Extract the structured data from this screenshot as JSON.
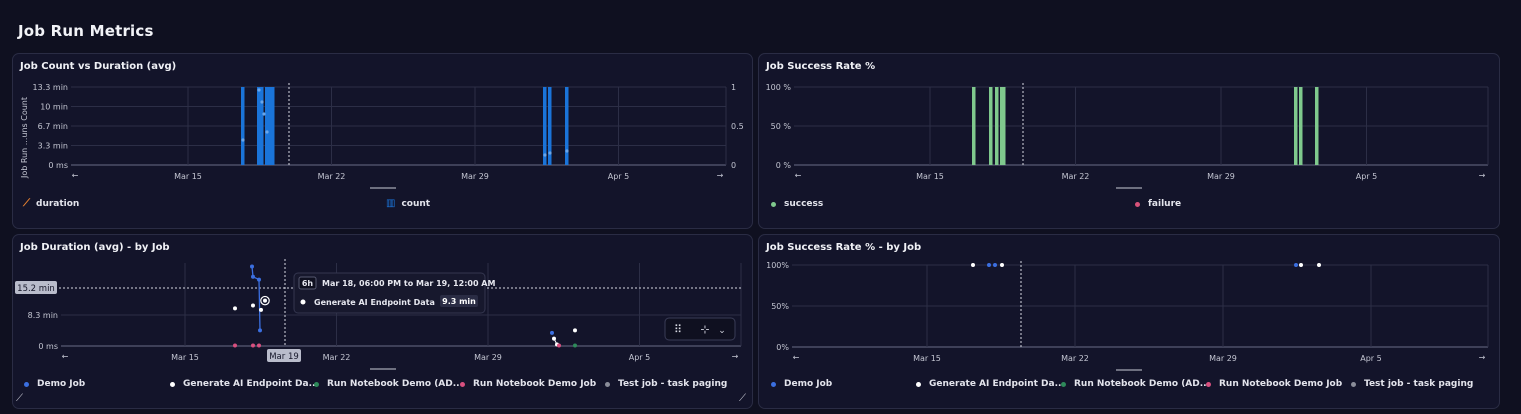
{
  "page": {
    "title": "Job Run Metrics"
  },
  "colors": {
    "count_bar": "#1a74d9",
    "success": "#7fc98d",
    "failure": "#d9527a",
    "duration": "#e8812f",
    "demo_job": "#3b6fe0",
    "generate_ai": "#ffffff",
    "run_notebook_ad": "#2e8a5a",
    "run_notebook": "#d8507f",
    "test_job": "#8a8d99"
  },
  "panels": {
    "count_duration": {
      "title": "Job Count vs Duration (avg)",
      "y_axis_label": "Job Run ...uns Count",
      "legend": [
        {
          "label": "duration",
          "icon": "line-chart-icon"
        },
        {
          "label": "count",
          "icon": "bar-chart-icon"
        }
      ]
    },
    "success_rate": {
      "title": "Job Success Rate %",
      "legend": [
        {
          "label": "success",
          "color": "#7fc98d"
        },
        {
          "label": "failure",
          "color": "#d9527a"
        }
      ]
    },
    "duration_by_job": {
      "title": "Job Duration (avg) - by Job",
      "crosshair_value": "15.2 min",
      "crosshair_date": "Mar 19",
      "tooltip": {
        "badge": "6h",
        "range": "Mar 18, 06:00 PM to Mar 19, 12:00 AM",
        "series": "Generate AI Endpoint Data",
        "value": "9.3 min"
      },
      "legend": [
        {
          "label": "Demo Job",
          "color": "#3b6fe0"
        },
        {
          "label": "Generate AI Endpoint Da...",
          "color": "#ffffff"
        },
        {
          "label": "Run Notebook Demo (AD...",
          "color": "#2e8a5a"
        },
        {
          "label": "Run Notebook Demo Job",
          "color": "#d8507f"
        },
        {
          "label": "Test job - task paging",
          "color": "#8a8d99"
        }
      ]
    },
    "success_by_job": {
      "title": "Job Success Rate % - by Job",
      "legend": [
        {
          "label": "Demo Job",
          "color": "#3b6fe0"
        },
        {
          "label": "Generate AI Endpoint Da...",
          "color": "#ffffff"
        },
        {
          "label": "Run Notebook Demo (AD...",
          "color": "#2e8a5a"
        },
        {
          "label": "Run Notebook Demo Job",
          "color": "#d8507f"
        },
        {
          "label": "Test job - task paging",
          "color": "#8a8d99"
        }
      ]
    }
  },
  "chart_data": [
    {
      "type": "bar",
      "title": "Job Count vs Duration (avg)",
      "x_ticks": [
        "Mar 15",
        "Mar 22",
        "Mar 29",
        "Apr 5"
      ],
      "y_ticks_left": [
        "0 ms",
        "3.3 min",
        "6.7 min",
        "10 min",
        "13.3 min"
      ],
      "y_ticks_right": [
        "0",
        "0.5",
        "1"
      ],
      "count_bars": [
        {
          "date": "Mar 18",
          "count": 1
        },
        {
          "date": "Mar 18",
          "count": 1
        },
        {
          "date": "Mar 18",
          "count": 1
        },
        {
          "date": "Mar 19",
          "count": 1
        },
        {
          "date": "Mar 19",
          "count": 1
        },
        {
          "date": "Mar 19",
          "count": 1
        },
        {
          "date": "Mar 31",
          "count": 1
        },
        {
          "date": "Mar 31",
          "count": 1
        },
        {
          "date": "Apr 1",
          "count": 1
        }
      ]
    },
    {
      "type": "bar",
      "title": "Job Success Rate %",
      "x_ticks": [
        "Mar 15",
        "Mar 22",
        "Mar 29",
        "Apr 5"
      ],
      "y_ticks": [
        "0 %",
        "50 %",
        "100 %"
      ],
      "success_bars": [
        {
          "date": "Mar 18",
          "value": 100
        },
        {
          "date": "Mar 18",
          "value": 100
        },
        {
          "date": "Mar 19",
          "value": 100
        },
        {
          "date": "Mar 19",
          "value": 100
        },
        {
          "date": "Mar 19",
          "value": 100
        },
        {
          "date": "Mar 31",
          "value": 100
        },
        {
          "date": "Mar 31",
          "value": 100
        },
        {
          "date": "Apr 1",
          "value": 100
        }
      ]
    },
    {
      "type": "scatter",
      "title": "Job Duration (avg) - by Job",
      "x_ticks": [
        "Mar 15",
        "Mar 22",
        "Mar 29",
        "Apr 5"
      ],
      "y_ticks": [
        "0 ms",
        "8.3 min"
      ],
      "series": [
        {
          "name": "Demo Job",
          "points": [
            [
              "Mar 18",
              16.3
            ],
            [
              "Mar 18",
              14.2
            ],
            [
              "Mar 18",
              13.6
            ],
            [
              "Mar 19",
              3.2
            ],
            [
              "Mar 31",
              2.7
            ]
          ]
        },
        {
          "name": "Generate AI Endpoint Da...",
          "points": [
            [
              "Mar 17",
              7.7
            ],
            [
              "Mar 18",
              8.3
            ],
            [
              "Mar 18",
              7.4
            ],
            [
              "Mar 19",
              9.3
            ],
            [
              "Mar 31",
              1.5
            ],
            [
              "Mar 31",
              0.3
            ],
            [
              "Apr 1",
              3.2
            ]
          ]
        },
        {
          "name": "Run Notebook Demo (AD...",
          "points": [
            [
              "Apr 1",
              0.1
            ]
          ]
        },
        {
          "name": "Run Notebook Demo Job",
          "points": [
            [
              "Mar 17",
              0.1
            ],
            [
              "Mar 18",
              0.1
            ],
            [
              "Mar 18",
              0.1
            ],
            [
              "Mar 31",
              0.1
            ]
          ]
        },
        {
          "name": "Test job - task paging",
          "points": []
        }
      ]
    },
    {
      "type": "scatter",
      "title": "Job Success Rate % - by Job",
      "x_ticks": [
        "Mar 15",
        "Mar 22",
        "Mar 29",
        "Apr 5"
      ],
      "y_ticks": [
        "0%",
        "50%",
        "100%"
      ],
      "series": [
        {
          "name": "Demo Job",
          "points": [
            [
              "Mar 18",
              100
            ],
            [
              "Mar 18",
              100
            ],
            [
              "Mar 31",
              100
            ]
          ]
        },
        {
          "name": "Generate AI Endpoint Da...",
          "points": [
            [
              "Mar 17",
              100
            ],
            [
              "Mar 19",
              100
            ],
            [
              "Mar 31",
              100
            ],
            [
              "Apr 1",
              100
            ]
          ]
        }
      ]
    }
  ]
}
